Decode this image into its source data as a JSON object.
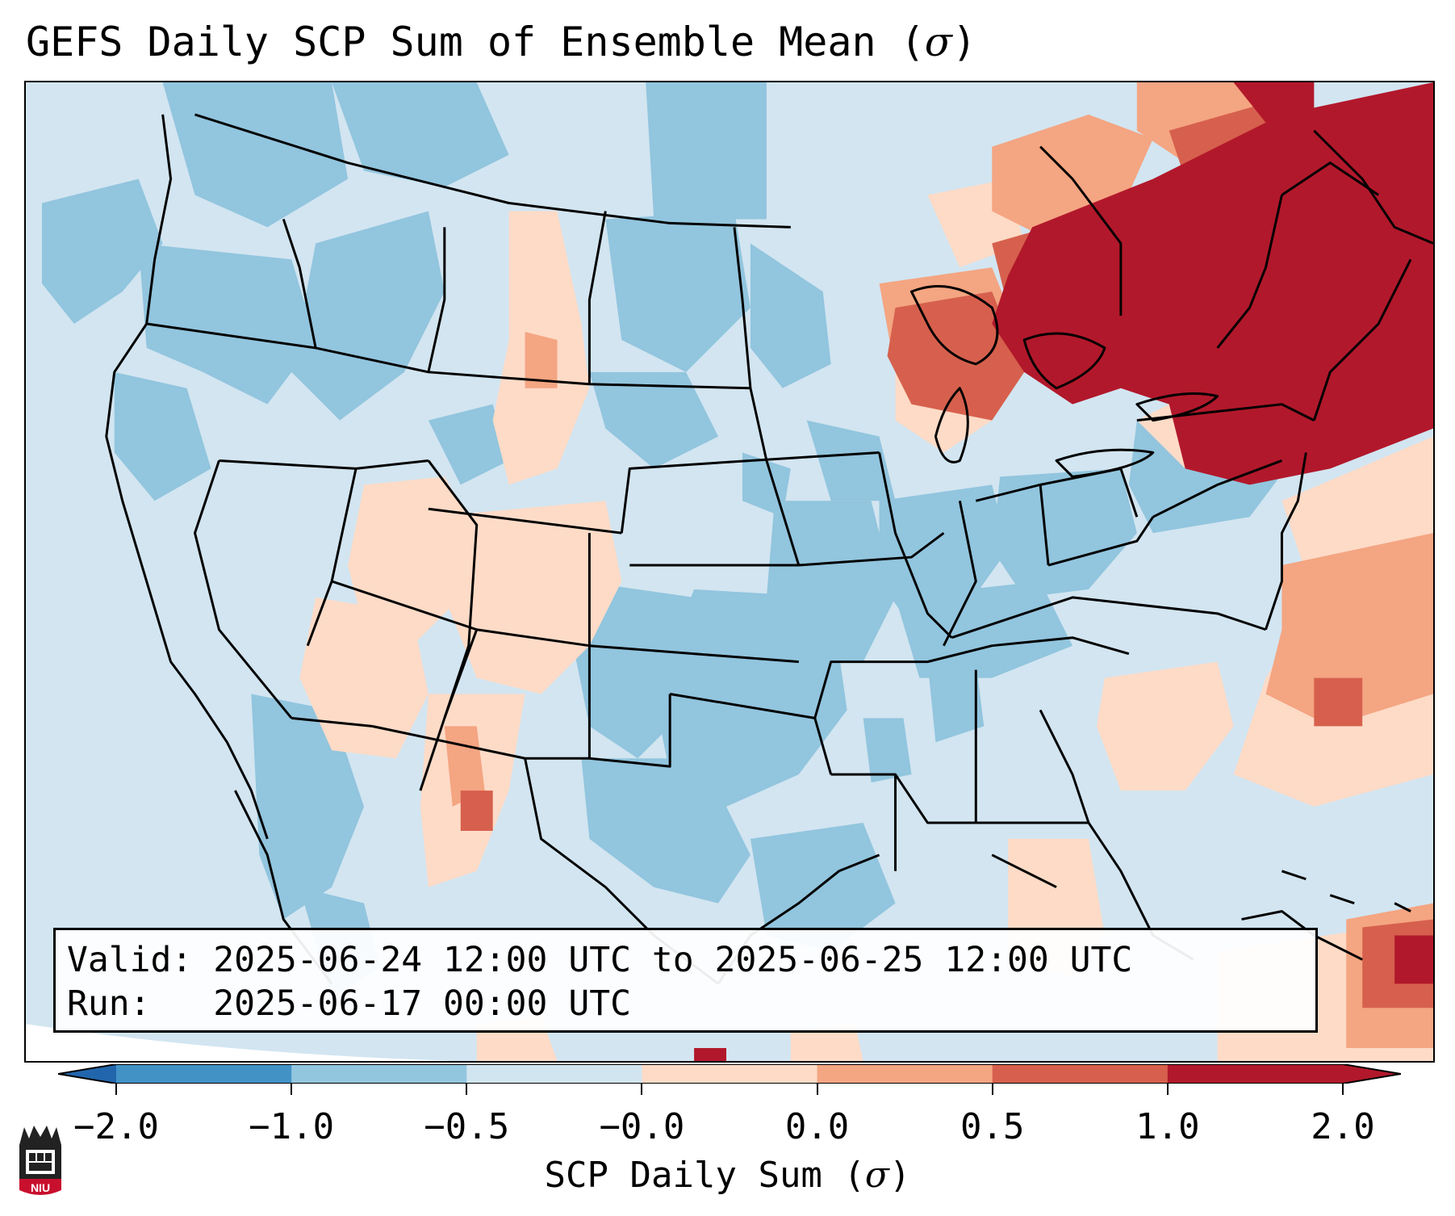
{
  "title": {
    "text": "GEFS Daily SCP Sum of Ensemble Mean (",
    "symbol": "σ",
    "close": ")"
  },
  "info": {
    "valid_label": "Valid:",
    "valid_value": "2025-06-24 12:00 UTC to 2025-06-25 12:00 UTC",
    "run_label": "Run:",
    "run_value": "2025-06-17 00:00 UTC"
  },
  "colorbar": {
    "ticks": [
      "−2.0",
      "−1.0",
      "−0.5",
      "−0.0",
      "0.0",
      "0.5",
      "1.0",
      "2.0"
    ],
    "colors": [
      "#4292c6",
      "#92c5de",
      "#d1e5f0",
      "#f7f7f7",
      "#fddbc7",
      "#f4a582",
      "#d6604d",
      "#b2182b"
    ],
    "label_text": "SCP Daily Sum (",
    "label_symbol": "σ",
    "label_close": ")"
  },
  "legend_colors": {
    "strong_neg": "#92c5de",
    "weak_neg": "#d1e5f0",
    "weak_pos": "#fddbc7",
    "mod_pos": "#f4a582",
    "strong_pos": "#d6604d",
    "max_pos": "#b2182b"
  },
  "logo": {
    "text": "NIU",
    "color": "#c8102e"
  }
}
